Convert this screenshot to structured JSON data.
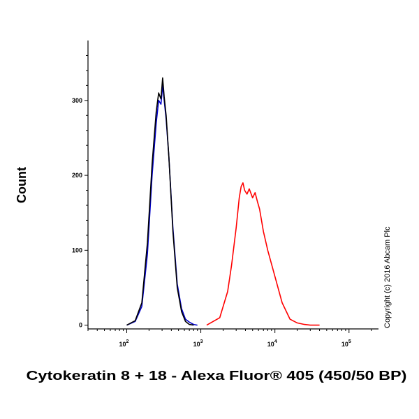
{
  "chart_data": {
    "type": "line",
    "xlabel": "Cytokeratin 8 + 18 - Alexa Fluor® 405 (450/50 BP)",
    "ylabel": "Count",
    "x_scale": "log",
    "xlim": [
      30,
      250000
    ],
    "ylim": [
      -5,
      380
    ],
    "y_ticks": [
      0,
      100,
      200,
      300
    ],
    "x_ticks": [
      {
        "base": "10",
        "exp": "2",
        "value": 100
      },
      {
        "base": "10",
        "exp": "3",
        "value": 1000
      },
      {
        "base": "10",
        "exp": "4",
        "value": 10000
      },
      {
        "base": "10",
        "exp": "5",
        "value": 100000
      }
    ],
    "annotation": "Copyright (c) 2016 Abcam Plc",
    "grid": false,
    "series": [
      {
        "color": "#ff0000",
        "x": [
          1200,
          1800,
          2300,
          2600,
          3000,
          3300,
          3500,
          3700,
          3900,
          4200,
          4500,
          5000,
          5400,
          5800,
          6200,
          7000,
          8000,
          10000,
          12500,
          16000,
          20000,
          25000,
          30000,
          40000
        ],
        "y": [
          0,
          10,
          45,
          80,
          130,
          170,
          185,
          190,
          180,
          175,
          182,
          170,
          177,
          165,
          155,
          125,
          100,
          65,
          30,
          8,
          3,
          1,
          0,
          0
        ]
      },
      {
        "color": "#0000cc",
        "x": [
          100,
          130,
          160,
          190,
          220,
          250,
          270,
          290,
          305,
          320,
          340,
          370,
          420,
          480,
          550,
          620,
          700,
          800,
          900
        ],
        "y": [
          0,
          5,
          25,
          95,
          200,
          270,
          300,
          295,
          320,
          300,
          275,
          225,
          130,
          55,
          22,
          8,
          4,
          1,
          0
        ]
      },
      {
        "color": "#000000",
        "x": [
          100,
          130,
          160,
          190,
          220,
          250,
          270,
          290,
          305,
          320,
          340,
          370,
          420,
          480,
          550,
          620,
          700,
          800
        ],
        "y": [
          0,
          6,
          30,
          110,
          215,
          285,
          310,
          302,
          330,
          305,
          280,
          225,
          125,
          50,
          18,
          5,
          1,
          0
        ]
      }
    ]
  }
}
